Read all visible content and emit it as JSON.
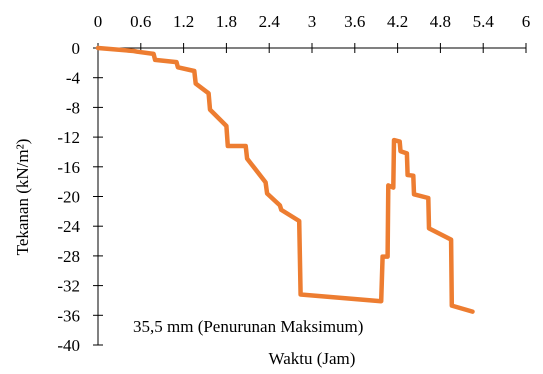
{
  "chart_data": {
    "type": "line",
    "title": "",
    "xlabel": "Waktu (Jam)",
    "ylabel": "Tekanan (kN/m²)",
    "xlim": [
      0,
      6
    ],
    "ylim": [
      -40,
      0
    ],
    "x_axis_position": "top",
    "x_ticks": [
      0,
      0.6,
      1.2,
      1.8,
      2.4,
      3,
      3.6,
      4.2,
      4.8,
      5.4,
      6
    ],
    "x_tick_labels": [
      "0",
      "0.6",
      "1.2",
      "1.8",
      "2.4",
      "3",
      "3.6",
      "4.2",
      "4.8",
      "5.4",
      "6"
    ],
    "y_ticks": [
      0,
      -4,
      -8,
      -12,
      -16,
      -20,
      -24,
      -28,
      -32,
      -36,
      -40
    ],
    "y_tick_labels": [
      "0",
      "-4",
      "-8",
      "-12",
      "-16",
      "-20",
      "-24",
      "-28",
      "-32",
      "-36",
      "-40"
    ],
    "grid": false,
    "color": "#ED7D31",
    "series": [
      {
        "x": [
          0,
          0.5,
          0.55,
          0.78,
          0.8,
          1.1,
          1.12,
          1.35,
          1.37,
          1.55,
          1.57,
          1.8,
          1.82,
          2.07,
          2.09,
          2.35,
          2.37,
          2.55,
          2.57,
          2.82,
          2.84,
          3.97,
          3.99,
          4.06,
          4.07,
          4.14,
          4.15,
          4.23,
          4.24,
          4.33,
          4.34,
          4.42,
          4.43,
          4.63,
          4.64,
          4.95,
          4.96,
          5.25
        ],
        "y": [
          0,
          -0.4,
          -0.5,
          -0.8,
          -1.6,
          -1.9,
          -2.6,
          -3.1,
          -4.8,
          -6.1,
          -8.3,
          -10.5,
          -13.2,
          -13.2,
          -14.9,
          -18.1,
          -19.6,
          -21.2,
          -21.8,
          -23.3,
          -33.2,
          -34.1,
          -28.1,
          -28.1,
          -18.5,
          -18.8,
          -12.4,
          -12.6,
          -13.9,
          -14.2,
          -17.1,
          -17.2,
          -19.7,
          -20.2,
          -24.3,
          -25.8,
          -34.7,
          -35.5
        ]
      }
    ],
    "annotations": [
      {
        "text": "35,5 mm (Penurunan Maksimum)",
        "x": 3.0,
        "y": -38.0
      }
    ]
  }
}
